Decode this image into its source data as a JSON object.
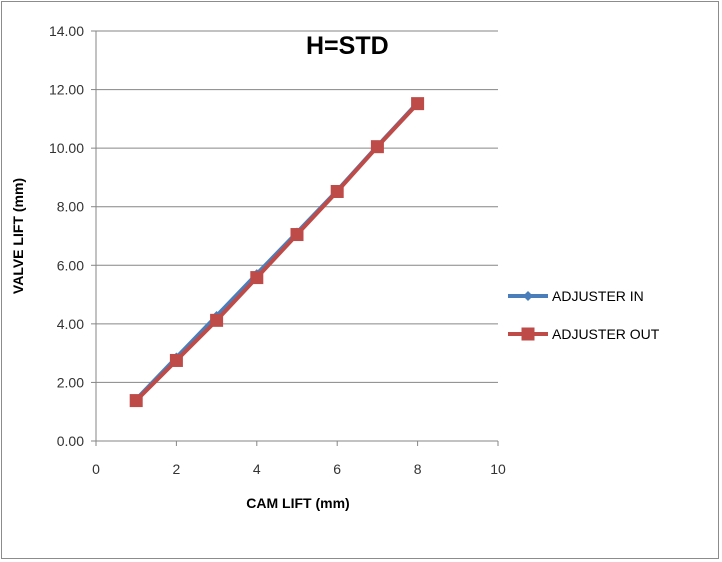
{
  "chart_data": {
    "type": "line",
    "title": "H=STD",
    "xlabel": "CAM LIFT (mm)",
    "ylabel": "VALVE LIFT (mm)",
    "xlim": [
      0,
      10
    ],
    "ylim": [
      0,
      14
    ],
    "xticks": [
      "0",
      "2",
      "4",
      "6",
      "8",
      "10"
    ],
    "yticks": [
      "0.00",
      "2.00",
      "4.00",
      "6.00",
      "8.00",
      "10.00",
      "12.00",
      "14.00"
    ],
    "grid": "horizontal",
    "legend_position": "right",
    "series": [
      {
        "name": "ADJUSTER IN",
        "color": "#4a7ebb",
        "marker": "diamond",
        "x": [
          1,
          2,
          3,
          4,
          5,
          6,
          7,
          8
        ],
        "y": [
          1.42,
          2.85,
          4.27,
          5.7,
          7.12,
          8.55,
          10.07,
          11.55
        ]
      },
      {
        "name": "ADJUSTER OUT",
        "color": "#be4b48",
        "marker": "square",
        "x": [
          1,
          2,
          3,
          4,
          5,
          6,
          7,
          8
        ],
        "y": [
          1.38,
          2.75,
          4.12,
          5.58,
          7.05,
          8.52,
          10.05,
          11.52
        ]
      }
    ]
  }
}
